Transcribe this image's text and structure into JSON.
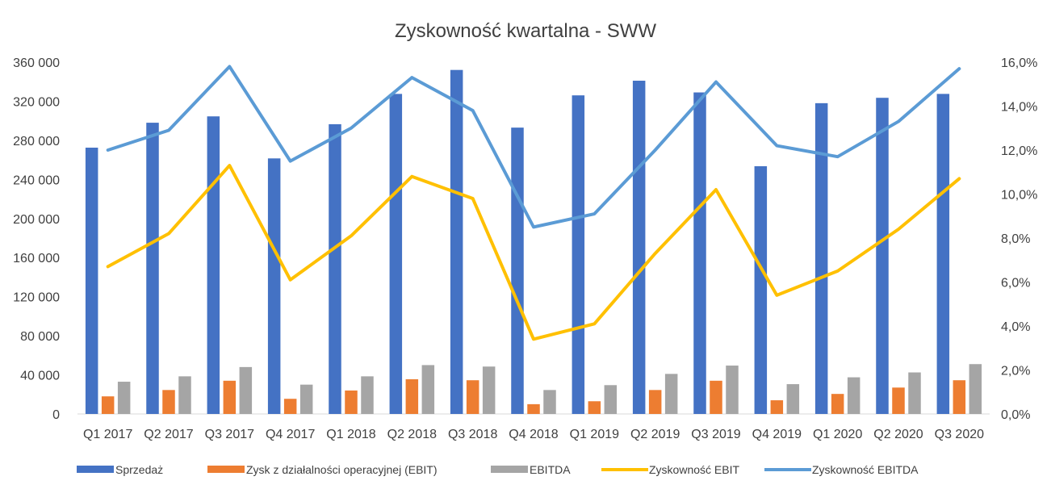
{
  "chart_data": {
    "type": "bar",
    "title": "Zyskowność kwartalna - SWW",
    "categories": [
      "Q1 2017",
      "Q2 2017",
      "Q3 2017",
      "Q4 2017",
      "Q1 2018",
      "Q2 2018",
      "Q3 2018",
      "Q4 2018",
      "Q1 2019",
      "Q2 2019",
      "Q3 2019",
      "Q4 2019",
      "Q1 2020",
      "Q2 2020",
      "Q3 2020"
    ],
    "y_left": {
      "lim": [
        0,
        360000
      ],
      "ticks": [
        0,
        40000,
        80000,
        120000,
        160000,
        200000,
        240000,
        280000,
        320000,
        360000
      ],
      "tick_labels": [
        "0",
        "40 000",
        "80 000",
        "120 000",
        "160 000",
        "200 000",
        "240 000",
        "280 000",
        "320 000",
        "360 000"
      ]
    },
    "y_right": {
      "lim": [
        0,
        16
      ],
      "ticks": [
        0,
        2,
        4,
        6,
        8,
        10,
        12,
        14,
        16
      ],
      "tick_labels": [
        "0,0%",
        "2,0%",
        "4,0%",
        "6,0%",
        "8,0%",
        "10,0%",
        "12,0%",
        "14,0%",
        "16,0%"
      ]
    },
    "bar_series": [
      {
        "name": "Sprzedaż",
        "color": "#4472C4",
        "values": [
          272500,
          298000,
          304500,
          261500,
          296500,
          327500,
          352000,
          293000,
          326000,
          341000,
          329000,
          253500,
          318000,
          323500,
          327500
        ]
      },
      {
        "name": "Zysk z działalności operacyjnej (EBIT)",
        "color": "#ED7D31",
        "values": [
          18000,
          24500,
          34000,
          15500,
          24000,
          35500,
          34500,
          10000,
          13000,
          24500,
          34000,
          14000,
          20500,
          27000,
          34500
        ]
      },
      {
        "name": "EBITDA",
        "color": "#A5A5A5",
        "values": [
          33000,
          38500,
          48000,
          30000,
          38500,
          50000,
          48500,
          24500,
          29500,
          41000,
          49500,
          30500,
          37500,
          42500,
          51000
        ]
      }
    ],
    "line_series": [
      {
        "name": "Zyskowność EBIT",
        "color": "#FFC000",
        "values": [
          6.7,
          8.2,
          11.3,
          6.1,
          8.1,
          10.8,
          9.8,
          3.4,
          4.1,
          7.3,
          10.2,
          5.4,
          6.5,
          8.4,
          10.7
        ]
      },
      {
        "name": "Zyskowność EBITDA",
        "color": "#5B9BD5",
        "values": [
          12.0,
          12.9,
          15.8,
          11.5,
          13.0,
          15.3,
          13.8,
          8.5,
          9.1,
          12.0,
          15.1,
          12.2,
          11.7,
          13.3,
          15.7
        ]
      }
    ],
    "grid": false,
    "legend_position": "bottom"
  }
}
